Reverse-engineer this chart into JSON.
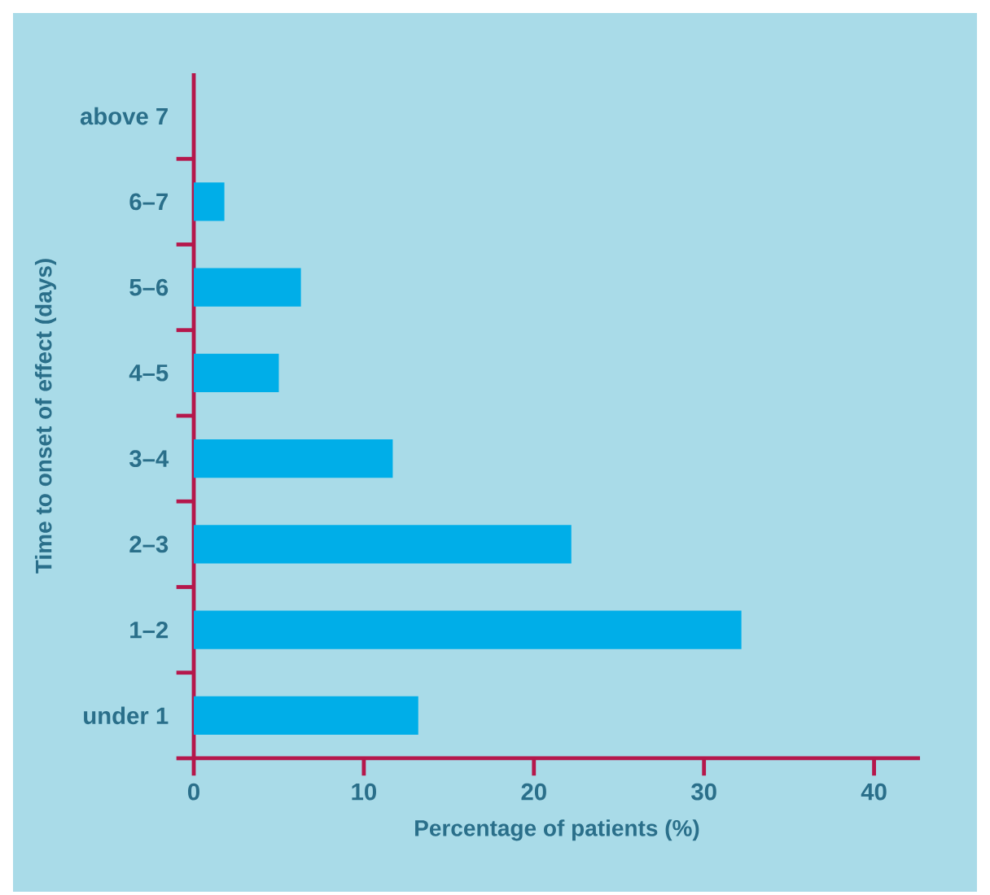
{
  "chart_data": {
    "type": "bar",
    "orientation": "horizontal",
    "categories": [
      "above 7",
      "6–7",
      "5–6",
      "4–5",
      "3–4",
      "2–3",
      "1–2",
      "under 1"
    ],
    "values": [
      0,
      1.8,
      6.3,
      5.0,
      11.7,
      22.2,
      32.2,
      13.2
    ],
    "color": "#00aee8",
    "xlabel": "Percentage of patients (%)",
    "ylabel": "Time to onset of effect (days)",
    "xlim": [
      0,
      42.7
    ],
    "xticks": [
      0,
      10,
      20,
      30,
      40
    ],
    "grid": false
  }
}
